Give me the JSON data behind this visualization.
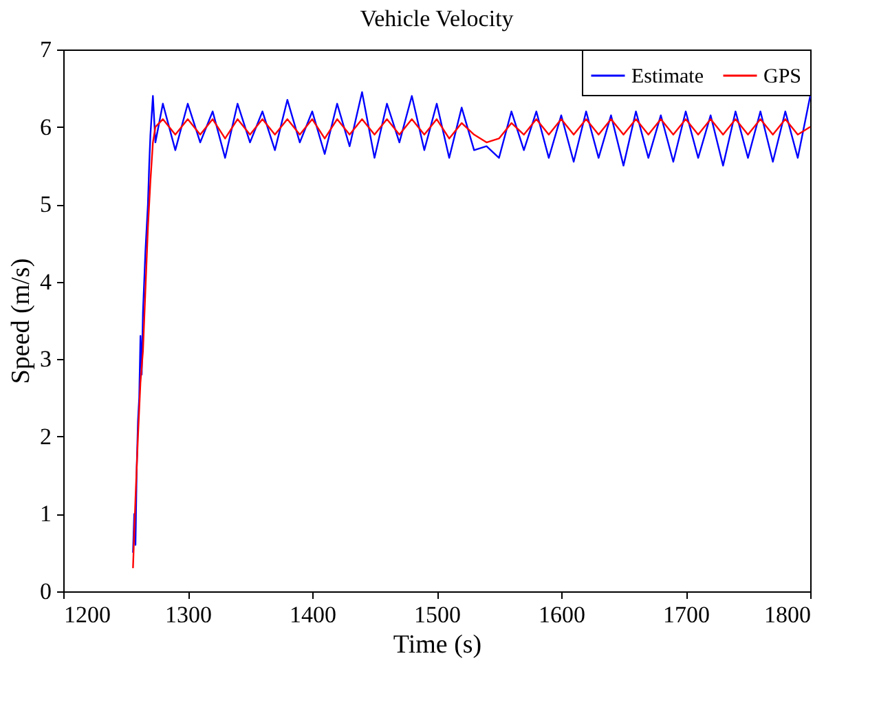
{
  "chart_data": {
    "type": "line",
    "title": "Vehicle Velocity",
    "xlabel": "Time (s)",
    "ylabel": "Speed (m/s)",
    "xlim": [
      1200,
      1800
    ],
    "xticks": [
      1200,
      1300,
      1400,
      1500,
      1600,
      1700,
      1800
    ],
    "ylim": [
      0,
      7
    ],
    "yticks": [
      0,
      1,
      2,
      3,
      4,
      5,
      6,
      7
    ],
    "grid": false,
    "legend": "top right",
    "marker": "none",
    "line_style": "solid",
    "series": [
      {
        "name": "Estimate",
        "color": "#0000ff",
        "x": [
          1256,
          1257,
          1258,
          1259,
          1260,
          1261,
          1262,
          1263,
          1264,
          1265,
          1266,
          1267,
          1268,
          1269,
          1270,
          1272,
          1274,
          1280,
          1290,
          1300,
          1310,
          1320,
          1330,
          1340,
          1350,
          1360,
          1370,
          1380,
          1390,
          1400,
          1410,
          1420,
          1430,
          1440,
          1450,
          1460,
          1470,
          1480,
          1490,
          1500,
          1510,
          1520,
          1530,
          1540,
          1550,
          1560,
          1570,
          1580,
          1590,
          1600,
          1610,
          1620,
          1630,
          1640,
          1650,
          1660,
          1670,
          1680,
          1690,
          1700,
          1710,
          1720,
          1730,
          1740,
          1750,
          1760,
          1770,
          1780,
          1790,
          1800
        ],
        "values": [
          0.5,
          1.0,
          0.6,
          1.6,
          2.2,
          2.5,
          3.3,
          2.8,
          3.6,
          4.0,
          4.4,
          4.7,
          5.0,
          5.5,
          5.9,
          6.4,
          5.8,
          6.3,
          5.7,
          6.3,
          5.8,
          6.2,
          5.6,
          6.3,
          5.8,
          6.2,
          5.7,
          6.35,
          5.8,
          6.2,
          5.65,
          6.3,
          5.75,
          6.45,
          5.6,
          6.3,
          5.8,
          6.4,
          5.7,
          6.3,
          5.6,
          6.25,
          5.7,
          5.75,
          5.6,
          6.2,
          5.7,
          6.2,
          5.6,
          6.15,
          5.55,
          6.2,
          5.6,
          6.15,
          5.5,
          6.2,
          5.6,
          6.15,
          5.55,
          6.2,
          5.6,
          6.15,
          5.5,
          6.2,
          5.6,
          6.2,
          5.55,
          6.2,
          5.6,
          6.4
        ]
      },
      {
        "name": "GPS",
        "color": "#ff0000",
        "x": [
          1256,
          1258,
          1260,
          1262,
          1264,
          1266,
          1268,
          1270,
          1272,
          1274,
          1280,
          1290,
          1300,
          1310,
          1320,
          1330,
          1340,
          1350,
          1360,
          1370,
          1380,
          1390,
          1400,
          1410,
          1420,
          1430,
          1440,
          1450,
          1460,
          1470,
          1480,
          1490,
          1500,
          1510,
          1520,
          1530,
          1540,
          1550,
          1560,
          1570,
          1580,
          1590,
          1600,
          1610,
          1620,
          1630,
          1640,
          1650,
          1660,
          1670,
          1680,
          1690,
          1700,
          1710,
          1720,
          1730,
          1740,
          1750,
          1760,
          1770,
          1780,
          1790,
          1800
        ],
        "values": [
          0.3,
          1.2,
          2.0,
          2.7,
          3.1,
          3.9,
          4.7,
          5.3,
          5.8,
          6.0,
          6.1,
          5.9,
          6.1,
          5.9,
          6.1,
          5.85,
          6.1,
          5.9,
          6.1,
          5.9,
          6.1,
          5.9,
          6.1,
          5.85,
          6.1,
          5.9,
          6.1,
          5.9,
          6.1,
          5.9,
          6.1,
          5.9,
          6.1,
          5.85,
          6.05,
          5.9,
          5.8,
          5.85,
          6.05,
          5.9,
          6.1,
          5.9,
          6.1,
          5.9,
          6.1,
          5.9,
          6.1,
          5.9,
          6.1,
          5.9,
          6.1,
          5.9,
          6.1,
          5.9,
          6.1,
          5.9,
          6.1,
          5.9,
          6.1,
          5.9,
          6.1,
          5.9,
          6.0
        ]
      }
    ]
  }
}
